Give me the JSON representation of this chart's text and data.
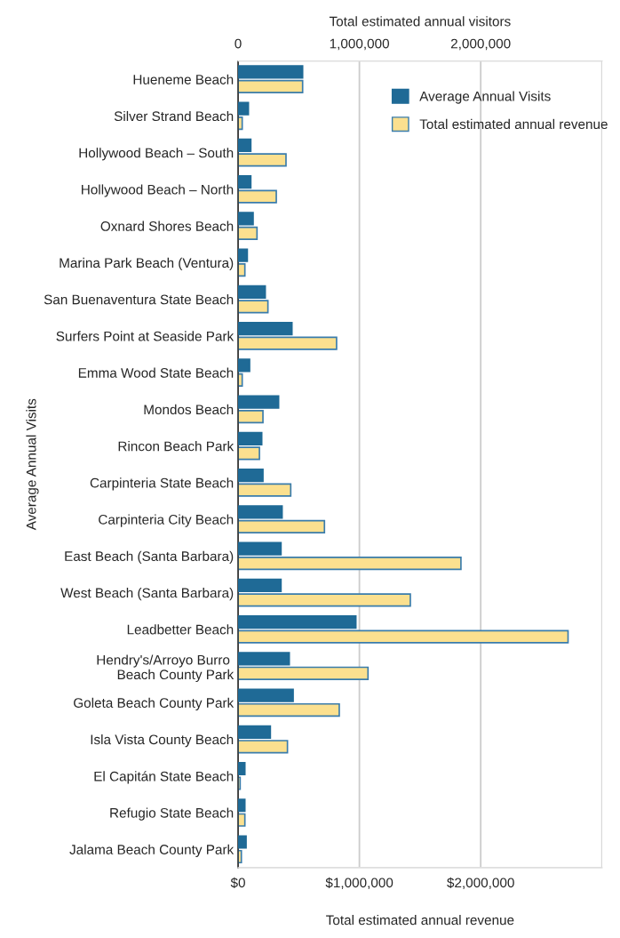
{
  "chart_data": {
    "type": "bar",
    "orientation": "horizontal",
    "categories": [
      "Hueneme Beach",
      "Silver Strand Beach",
      "Hollywood Beach – South",
      "Hollywood Beach – North",
      "Oxnard Shores Beach",
      "Marina Park Beach (Ventura)",
      "San Buenaventura State Beach",
      "Surfers Point at Seaside Park",
      "Emma Wood State Beach",
      "Mondos Beach",
      "Rincon Beach Park",
      "Carpinteria State Beach",
      "Carpinteria City Beach",
      "East Beach (Santa Barbara)",
      "West Beach (Santa Barbara)",
      "Leadbetter Beach",
      "Hendry's/Arroyo Burro \nBeach County Park",
      "Goleta Beach County Park",
      "Isla Vista County Beach",
      "El Capitán State Beach",
      "Refugio State Beach",
      "Jalama Beach County Park"
    ],
    "series": [
      {
        "name": "Average Annual Visits",
        "color": "#1f6a96",
        "axis": "x2",
        "values": [
          532000,
          85000,
          105000,
          105000,
          124000,
          76000,
          224000,
          444000,
          95000,
          334000,
          195000,
          205000,
          363000,
          354000,
          354000,
          971000,
          422000,
          454000,
          266000,
          56000,
          56000,
          66000
        ]
      },
      {
        "name": "Total estimated annual revenue",
        "color": "#fbe08f",
        "values": [
          532000,
          34000,
          395000,
          315000,
          156000,
          56000,
          246000,
          812000,
          34000,
          205000,
          176000,
          434000,
          712000,
          1837000,
          1420000,
          2720000,
          1071000,
          834000,
          407000,
          17000,
          56000,
          27000
        ]
      }
    ],
    "xlabel": "Total estimated annual revenue",
    "x2label": "Total estimated annual visitors",
    "ylabel": "Average Annual Visits",
    "xlim": [
      0,
      3000000
    ],
    "xticks": [
      {
        "value": 0,
        "label": "$0"
      },
      {
        "value": 1000000,
        "label": "$1,000,000"
      },
      {
        "value": 2000000,
        "label": "$2,000,000"
      },
      {
        "value": 3000000,
        "label": null
      }
    ],
    "x2lim": [
      0,
      3000000
    ],
    "x2ticks": [
      {
        "value": 0,
        "label": "0"
      },
      {
        "value": 1000000,
        "label": "1,000,000"
      },
      {
        "value": 2000000,
        "label": "2,000,000"
      },
      {
        "value": 3000000,
        "label": null
      }
    ],
    "grid": "x",
    "legend": "top right"
  }
}
